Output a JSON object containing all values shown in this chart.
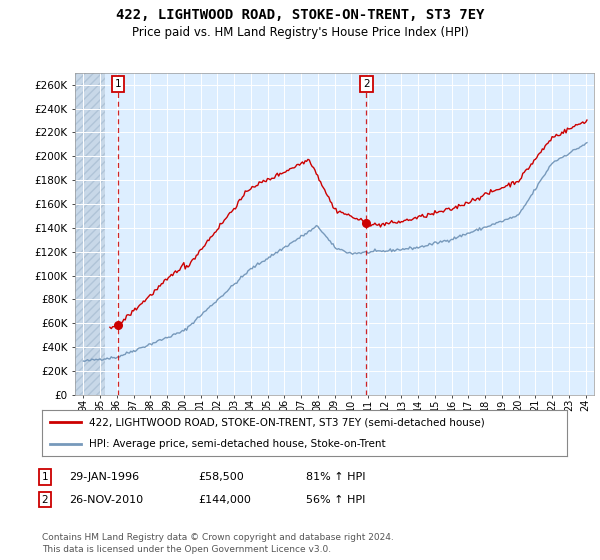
{
  "title": "422, LIGHTWOOD ROAD, STOKE-ON-TRENT, ST3 7EY",
  "subtitle": "Price paid vs. HM Land Registry's House Price Index (HPI)",
  "legend_line1": "422, LIGHTWOOD ROAD, STOKE-ON-TRENT, ST3 7EY (semi-detached house)",
  "legend_line2": "HPI: Average price, semi-detached house, Stoke-on-Trent",
  "sale1_date_str": "29-JAN-1996",
  "sale1_price": 58500,
  "sale1_hpi_pct": "81% ↑ HPI",
  "sale1_year": 1996.08,
  "sale2_date_str": "26-NOV-2010",
  "sale2_price": 144000,
  "sale2_hpi_pct": "56% ↑ HPI",
  "sale2_year": 2010.9,
  "ylabel_ticks": [
    0,
    20000,
    40000,
    60000,
    80000,
    100000,
    120000,
    140000,
    160000,
    180000,
    200000,
    220000,
    240000,
    260000
  ],
  "ylim": [
    0,
    270000
  ],
  "xlim_start": 1993.5,
  "xlim_end": 2024.5,
  "red_line_color": "#cc0000",
  "blue_line_color": "#7799bb",
  "plot_bg_color": "#ddeeff",
  "hatch_bg_color": "#c8d8e8",
  "grid_color": "#ffffff",
  "title_fontsize": 10,
  "subtitle_fontsize": 8.5,
  "footnote": "Contains HM Land Registry data © Crown copyright and database right 2024.\nThis data is licensed under the Open Government Licence v3.0."
}
